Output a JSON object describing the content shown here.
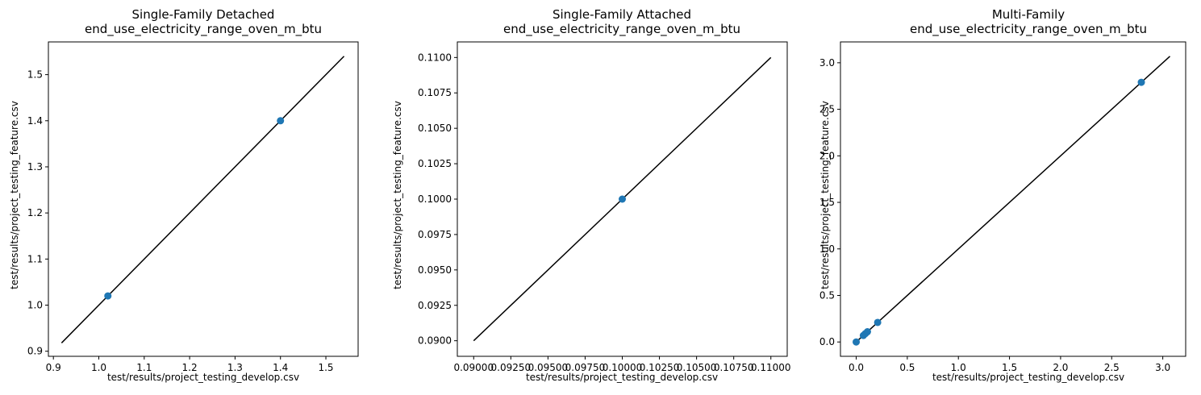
{
  "chart_data": [
    {
      "type": "scatter",
      "title": "Single-Family Detached",
      "subtitle": "end_use_electricity_range_oven_m_btu",
      "xlabel": "test/results/project_testing_develop.csv",
      "ylabel": "test/results/project_testing_feature.csv",
      "xlim": [
        0.889,
        1.571
      ],
      "ylim": [
        0.889,
        1.571
      ],
      "xticks": [
        0.9,
        1.0,
        1.1,
        1.2,
        1.3,
        1.4,
        1.5
      ],
      "xtick_labels": [
        "0.9",
        "1.0",
        "1.1",
        "1.2",
        "1.3",
        "1.4",
        "1.5"
      ],
      "yticks": [
        0.9,
        1.0,
        1.1,
        1.2,
        1.3,
        1.4,
        1.5
      ],
      "ytick_labels": [
        "0.9",
        "1.0",
        "1.1",
        "1.2",
        "1.3",
        "1.4",
        "1.5"
      ],
      "points": [
        {
          "x": 1.02,
          "y": 1.02
        },
        {
          "x": 1.4,
          "y": 1.4
        }
      ],
      "line": {
        "x": [
          0.918,
          1.54
        ],
        "y": [
          0.918,
          1.54
        ]
      },
      "grid": false
    },
    {
      "type": "scatter",
      "title": "Single-Family Attached",
      "subtitle": "end_use_electricity_range_oven_m_btu",
      "xlabel": "test/results/project_testing_develop.csv",
      "ylabel": "test/results/project_testing_feature.csv",
      "xlim": [
        0.0889,
        0.1111
      ],
      "ylim": [
        0.0889,
        0.1111
      ],
      "xticks": [
        0.09,
        0.0925,
        0.095,
        0.0975,
        0.1,
        0.1025,
        0.105,
        0.1075,
        0.11
      ],
      "xtick_labels": [
        "0.09000",
        "0.09250",
        "0.09500",
        "0.09750",
        "0.10000",
        "0.10250",
        "0.10500",
        "0.10750",
        "0.11000"
      ],
      "yticks": [
        0.09,
        0.0925,
        0.095,
        0.0975,
        0.1,
        0.1025,
        0.105,
        0.1075,
        0.11
      ],
      "ytick_labels": [
        "0.0900",
        "0.0925",
        "0.0950",
        "0.0975",
        "0.1000",
        "0.1025",
        "0.1050",
        "0.1075",
        "0.1100"
      ],
      "points": [
        {
          "x": 0.1,
          "y": 0.1
        }
      ],
      "line": {
        "x": [
          0.09,
          0.11
        ],
        "y": [
          0.09,
          0.11
        ]
      },
      "grid": false
    },
    {
      "type": "scatter",
      "title": "Multi-Family",
      "subtitle": "end_use_electricity_range_oven_m_btu",
      "xlabel": "test/results/project_testing_develop.csv",
      "ylabel": "test/results/project_testing_feature.csv",
      "xlim": [
        -0.154,
        3.224
      ],
      "ylim": [
        -0.154,
        3.224
      ],
      "xticks": [
        0.0,
        0.5,
        1.0,
        1.5,
        2.0,
        2.5,
        3.0
      ],
      "xtick_labels": [
        "0.0",
        "0.5",
        "1.0",
        "1.5",
        "2.0",
        "2.5",
        "3.0"
      ],
      "yticks": [
        0.0,
        0.5,
        1.0,
        1.5,
        2.0,
        2.5,
        3.0
      ],
      "ytick_labels": [
        "0.0",
        "0.5",
        "1.0",
        "1.5",
        "2.0",
        "2.5",
        "3.0"
      ],
      "points": [
        {
          "x": 0.0,
          "y": 0.0
        },
        {
          "x": 0.07,
          "y": 0.07
        },
        {
          "x": 0.09,
          "y": 0.09
        },
        {
          "x": 0.11,
          "y": 0.11
        },
        {
          "x": 0.21,
          "y": 0.21
        },
        {
          "x": 2.79,
          "y": 2.79
        }
      ],
      "line": {
        "x": [
          0.0,
          3.07
        ],
        "y": [
          0.0,
          3.07
        ]
      },
      "grid": false
    }
  ],
  "colors": {
    "point": "#1f77b4",
    "line": "#000000"
  }
}
